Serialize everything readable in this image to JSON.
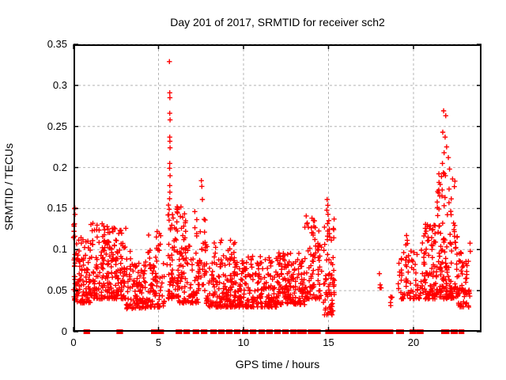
{
  "chart_data": {
    "type": "scatter",
    "title": "Day 201 of 2017, SRMTID for receiver sch2",
    "xlabel": "GPS time / hours",
    "ylabel": "SRMTID / TECUs",
    "xlim": [
      0,
      24
    ],
    "ylim": [
      0,
      0.35
    ],
    "xtick_values": [
      0,
      5,
      10,
      15,
      20
    ],
    "xtick_labels": [
      "0",
      "5",
      "10",
      "15",
      "20"
    ],
    "ytick_values": [
      0,
      0.05,
      0.1,
      0.15,
      0.2,
      0.25,
      0.3,
      0.35
    ],
    "ytick_labels": [
      "0",
      "0.05",
      "0.1",
      "0.15",
      "0.2",
      "0.25",
      "0.3",
      "0.35"
    ],
    "grid": true,
    "legend": "none",
    "marker": "plus",
    "marker_color": "#ff0000",
    "grid_color": "#b4b4b4",
    "border_color": "#000000",
    "seed": 20172011,
    "clusters": [
      {
        "x": [
          0.0,
          0.1
        ],
        "y": [
          0.04,
          0.152
        ],
        "n": 22,
        "bias": 1.0
      },
      {
        "x": [
          0.05,
          1.0
        ],
        "y": [
          0.035,
          0.115
        ],
        "n": 95,
        "bias": 1.7
      },
      {
        "x": [
          1.0,
          2.1
        ],
        "y": [
          0.04,
          0.132
        ],
        "n": 115,
        "bias": 1.9
      },
      {
        "x": [
          2.1,
          3.1
        ],
        "y": [
          0.04,
          0.128
        ],
        "n": 105,
        "bias": 2.0
      },
      {
        "x": [
          3.1,
          4.4
        ],
        "y": [
          0.028,
          0.098
        ],
        "n": 115,
        "bias": 1.7
      },
      {
        "x": [
          4.4,
          5.35
        ],
        "y": [
          0.03,
          0.122
        ],
        "n": 85,
        "bias": 2.0
      },
      {
        "x": [
          5.5,
          6.15
        ],
        "y": [
          0.04,
          0.156
        ],
        "n": 75,
        "bias": 1.5
      },
      {
        "x": [
          6.15,
          7.35
        ],
        "y": [
          0.035,
          0.148
        ],
        "n": 110,
        "bias": 2.1
      },
      {
        "x": [
          7.35,
          7.8
        ],
        "y": [
          0.05,
          0.152
        ],
        "n": 32,
        "bias": 1.4
      },
      {
        "x": [
          7.8,
          9.5
        ],
        "y": [
          0.03,
          0.112
        ],
        "n": 165,
        "bias": 2.1
      },
      {
        "x": [
          9.5,
          12.0
        ],
        "y": [
          0.03,
          0.092
        ],
        "n": 215,
        "bias": 1.9
      },
      {
        "x": [
          12.0,
          13.6
        ],
        "y": [
          0.033,
          0.096
        ],
        "n": 150,
        "bias": 1.9
      },
      {
        "x": [
          13.6,
          14.6
        ],
        "y": [
          0.04,
          0.142
        ],
        "n": 90,
        "bias": 2.0
      },
      {
        "x": [
          14.7,
          15.35
        ],
        "y": [
          0.02,
          0.138
        ],
        "n": 70,
        "bias": 1.7
      },
      {
        "x": [
          17.95,
          18.12
        ],
        "y": [
          0.048,
          0.078
        ],
        "n": 5,
        "bias": 1.0
      },
      {
        "x": [
          18.6,
          18.78
        ],
        "y": [
          0.02,
          0.044
        ],
        "n": 5,
        "bias": 1.0
      },
      {
        "x": [
          19.1,
          20.6
        ],
        "y": [
          0.04,
          0.12
        ],
        "n": 80,
        "bias": 1.9
      },
      {
        "x": [
          20.6,
          22.65
        ],
        "y": [
          0.04,
          0.132
        ],
        "n": 210,
        "bias": 1.9
      },
      {
        "x": [
          21.3,
          22.45
        ],
        "y": [
          0.13,
          0.198
        ],
        "n": 28,
        "bias": 1.4
      },
      {
        "x": [
          22.65,
          23.35
        ],
        "y": [
          0.03,
          0.108
        ],
        "n": 55,
        "bias": 1.7
      }
    ],
    "outliers": [
      [
        5.64,
        0.329
      ],
      [
        5.66,
        0.291
      ],
      [
        5.67,
        0.285
      ],
      [
        5.66,
        0.266
      ],
      [
        5.68,
        0.258
      ],
      [
        5.66,
        0.237
      ],
      [
        5.67,
        0.232
      ],
      [
        5.68,
        0.224
      ],
      [
        5.66,
        0.205
      ],
      [
        5.65,
        0.199
      ],
      [
        5.68,
        0.19
      ],
      [
        5.66,
        0.178
      ],
      [
        5.67,
        0.17
      ],
      [
        5.65,
        0.162
      ],
      [
        6.32,
        0.152
      ],
      [
        7.52,
        0.184
      ],
      [
        7.55,
        0.177
      ],
      [
        7.58,
        0.161
      ],
      [
        14.92,
        0.161
      ],
      [
        14.96,
        0.154
      ],
      [
        14.9,
        0.148
      ],
      [
        14.97,
        0.143
      ],
      [
        21.77,
        0.269
      ],
      [
        21.9,
        0.263
      ],
      [
        21.72,
        0.243
      ],
      [
        21.86,
        0.237
      ],
      [
        21.95,
        0.225
      ],
      [
        21.8,
        0.218
      ],
      [
        22.05,
        0.212
      ],
      [
        21.7,
        0.205
      ],
      [
        22.12,
        0.198
      ],
      [
        21.88,
        0.19
      ],
      [
        22.3,
        0.186
      ]
    ],
    "baseline_y": 0,
    "baseline_segments": [
      [
        0.68,
        0.88
      ],
      [
        2.62,
        2.82
      ],
      [
        4.65,
        4.85
      ],
      [
        5.03,
        5.23
      ],
      [
        6.1,
        6.3
      ],
      [
        6.56,
        6.76
      ],
      [
        7.1,
        7.3
      ],
      [
        7.58,
        7.78
      ],
      [
        8.14,
        8.34
      ],
      [
        8.6,
        8.8
      ],
      [
        9.06,
        9.26
      ],
      [
        9.53,
        9.73
      ],
      [
        10.0,
        10.2
      ],
      [
        10.46,
        10.66
      ],
      [
        10.97,
        11.17
      ],
      [
        11.43,
        11.63
      ],
      [
        11.9,
        12.1
      ],
      [
        12.37,
        12.57
      ],
      [
        12.84,
        13.04
      ],
      [
        13.25,
        13.62
      ],
      [
        13.88,
        14.45
      ],
      [
        14.9,
        18.72
      ],
      [
        19.07,
        19.35
      ],
      [
        19.86,
        20.06
      ],
      [
        20.25,
        20.5
      ],
      [
        21.72,
        22.02
      ],
      [
        22.28,
        22.52
      ],
      [
        22.75,
        22.9
      ]
    ]
  }
}
